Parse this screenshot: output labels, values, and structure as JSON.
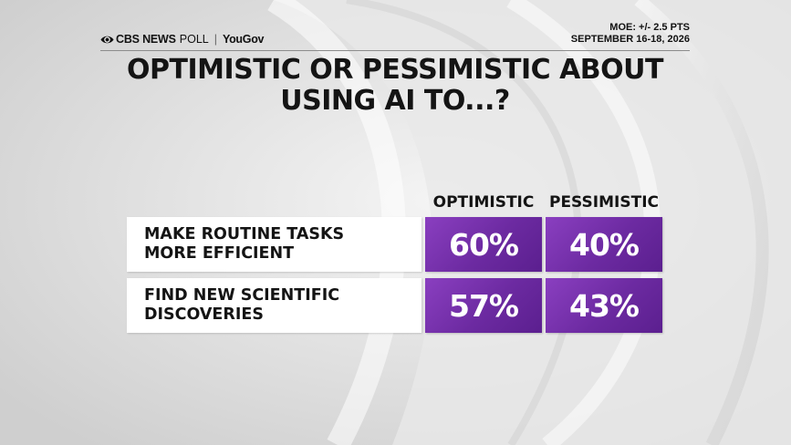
{
  "header": {
    "brand_network": "CBS NEWS",
    "brand_poll": "POLL",
    "brand_separator": "|",
    "brand_partner": "YouGov",
    "moe": "MOE: +/- 2.5 PTS",
    "dates": "SEPTEMBER 16-18, 2026"
  },
  "title_line1": "OPTIMISTIC OR PESSIMISTIC ABOUT",
  "title_line2": "USING AI TO...?",
  "colors": {
    "accent": "#6c2aa1",
    "background": "#d9d9d9"
  },
  "chart_data": {
    "type": "table",
    "columns": [
      "OPTIMISTIC",
      "PESSIMISTIC"
    ],
    "rows": [
      {
        "label_line1": "MAKE ROUTINE TASKS",
        "label_line2": "MORE EFFICIENT",
        "values": [
          60,
          40
        ],
        "display": [
          "60%",
          "40%"
        ]
      },
      {
        "label_line1": "FIND NEW SCIENTIFIC",
        "label_line2": "DISCOVERIES",
        "values": [
          57,
          43
        ],
        "display": [
          "57%",
          "43%"
        ]
      }
    ]
  }
}
